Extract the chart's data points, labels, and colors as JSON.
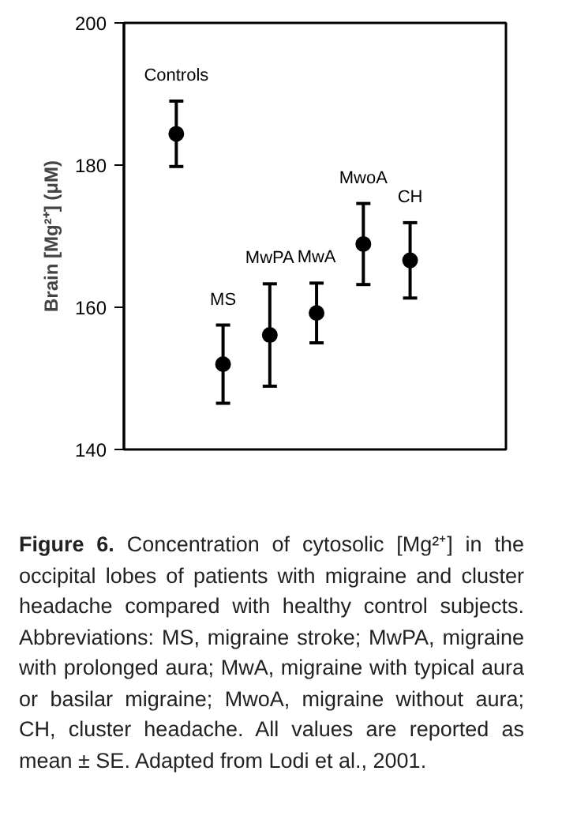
{
  "chart_data": {
    "type": "scatter",
    "ylabel": "Brain [Mg²⁺] (μM)",
    "categories": [
      "Controls",
      "MS",
      "MwPA",
      "MwA",
      "MwoA",
      "CH"
    ],
    "values": [
      184.4,
      152.0,
      156.1,
      159.2,
      168.9,
      166.6
    ],
    "errors": [
      4.6,
      5.5,
      7.2,
      4.2,
      5.7,
      5.3
    ],
    "color": "#000000",
    "marker": "circle",
    "ylim": [
      140,
      200
    ],
    "yticks": [
      140,
      160,
      180,
      200
    ],
    "grid": false,
    "tick_labels": "y",
    "annotations": [
      "Figure 6. Concentration of cytosolic [Mg²⁺] in the occipital lobes of patients with migraine and cluster headache compared with healthy control subjects. Abbreviations: MS, migraine stroke; MwPA, migraine with prolonged aura; MwA, migraine with typical aura or basilar migraine; MwoA, migraine without aura; CH, cluster headache. All values are reported as mean ± SE. Adapted from Lodi et al., 2001."
    ]
  }
}
